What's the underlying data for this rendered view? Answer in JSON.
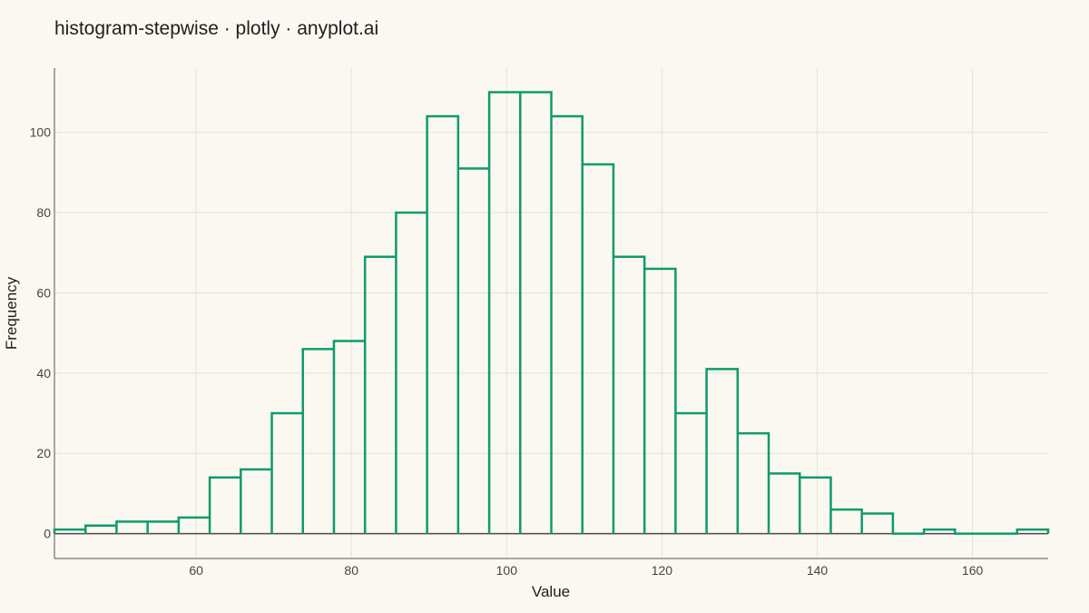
{
  "chart_data": {
    "type": "bar",
    "title": "histogram-stepwise · plotly · anyplot.ai",
    "xlabel": "Value",
    "ylabel": "Frequency",
    "xlim": [
      41.75,
      169.75
    ],
    "ylim": [
      -6.2,
      116
    ],
    "bin_width": 4,
    "bin_start": 41.75,
    "xticks": [
      60,
      80,
      100,
      120,
      140,
      160
    ],
    "yticks": [
      0,
      20,
      40,
      60,
      80,
      100
    ],
    "xtick_labels": [
      "60",
      "80",
      "100",
      "120",
      "140",
      "160"
    ],
    "ytick_labels": [
      "0",
      "20",
      "40",
      "60",
      "80",
      "100"
    ],
    "counts": [
      1,
      2,
      3,
      3,
      4,
      14,
      16,
      30,
      46,
      48,
      69,
      80,
      104,
      91,
      110,
      110,
      104,
      92,
      69,
      66,
      30,
      41,
      25,
      15,
      14,
      6,
      5,
      0,
      1,
      0,
      0,
      1
    ],
    "grid": true,
    "legend": "none",
    "colors": {
      "background": "#FAF8F1",
      "line": "#0E9A6E",
      "grid": "#E4E1D9",
      "zero_line": "#4a4a4a",
      "axis": "#555555"
    }
  }
}
